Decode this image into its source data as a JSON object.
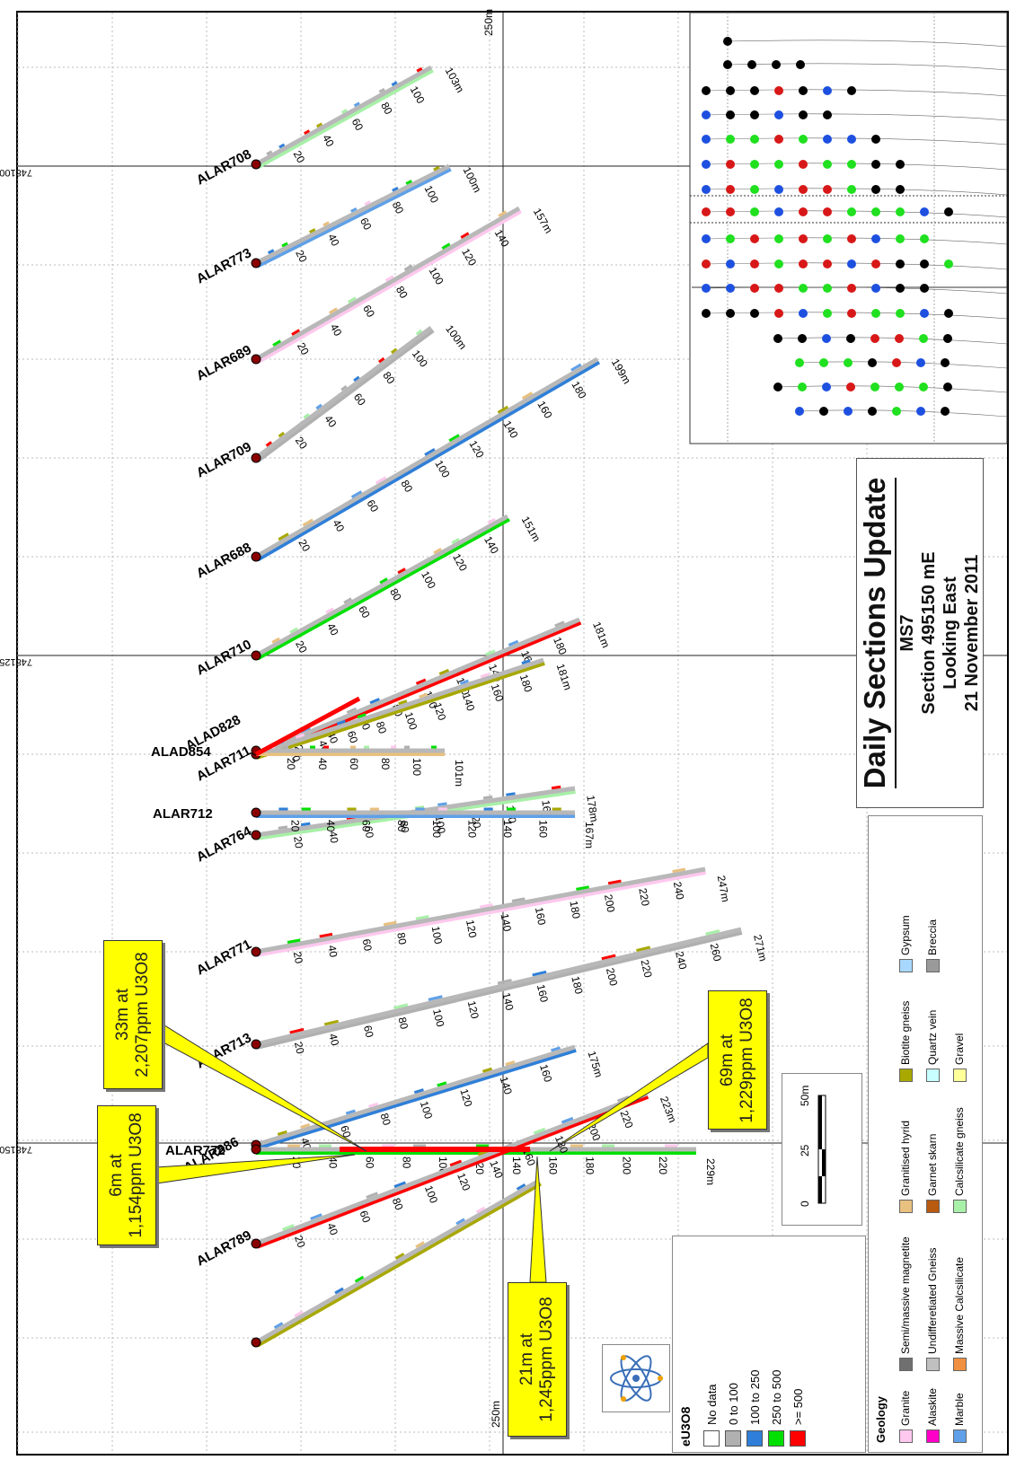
{
  "title": {
    "main": "Daily Sections Update",
    "sub1": "MS7",
    "sub2": "Section 495150 mE",
    "sub3": "Looking East",
    "sub4": "21 November 2011"
  },
  "grid": {
    "northings": [
      "7481000mN",
      "7481250mN",
      "7481500mN"
    ],
    "elevations_top": "250m",
    "elevations_bottom": "250m"
  },
  "holes": [
    {
      "name": "ALAR708",
      "end": "103m",
      "ticks": [
        "20",
        "40",
        "60",
        "80",
        "100"
      ]
    },
    {
      "name": "ALAR773",
      "end": "100m",
      "ticks": [
        "20",
        "40",
        "60",
        "80",
        "100"
      ]
    },
    {
      "name": "ALAR689",
      "end": "157m",
      "ticks": [
        "20",
        "40",
        "60",
        "80",
        "100",
        "120",
        "140"
      ]
    },
    {
      "name": "ALAR709",
      "end": "100m",
      "ticks": [
        "20",
        "40",
        "60",
        "80",
        "100"
      ]
    },
    {
      "name": "ALAR688",
      "end": "199m",
      "ticks": [
        "20",
        "40",
        "60",
        "80",
        "100",
        "120",
        "140",
        "160",
        "180"
      ]
    },
    {
      "name": "ALAR710",
      "end": "151m",
      "ticks": [
        "20",
        "40",
        "60",
        "80",
        "100",
        "120",
        "140"
      ]
    },
    {
      "name": "ALAD828",
      "end": "181m",
      "ticks": [
        "20",
        "40",
        "60",
        "80",
        "100",
        "120",
        "140",
        "160",
        "180"
      ]
    },
    {
      "name": "ALAR711",
      "end": "181m",
      "ticks": [
        "20",
        "40",
        "60",
        "80",
        "100",
        "120",
        "140",
        "160",
        "180"
      ]
    },
    {
      "name": "ALAD854",
      "end": "101m",
      "ticks": [
        "20",
        "40",
        "60",
        "80",
        "100"
      ]
    },
    {
      "name": "ALAR764",
      "end": "178m",
      "ticks": [
        "20",
        "40",
        "60",
        "80",
        "100",
        "120",
        "140",
        "160"
      ]
    },
    {
      "name": "ALAR712",
      "end": "167m",
      "ticks": [
        "20",
        "40",
        "60",
        "80",
        "100",
        "120",
        "140",
        "160"
      ]
    },
    {
      "name": "ALAR771",
      "end": "247m",
      "ticks": [
        "20",
        "40",
        "60",
        "80",
        "100",
        "120",
        "140",
        "160",
        "180",
        "200",
        "220",
        "240"
      ]
    },
    {
      "name": "ALAR713",
      "end": "271m",
      "ticks": [
        "20",
        "40",
        "60",
        "80",
        "100",
        "120",
        "140",
        "160",
        "180",
        "200",
        "220",
        "240",
        "260"
      ]
    },
    {
      "name": "ALAR886",
      "end": "175m",
      "ticks": [
        "40",
        "60",
        "80",
        "100",
        "120",
        "140",
        "160"
      ]
    },
    {
      "name": "ALAR772",
      "end": "229m",
      "ticks": [
        "20",
        "40",
        "60",
        "80",
        "100",
        "120",
        "140",
        "160",
        "180",
        "200",
        "220"
      ]
    },
    {
      "name": "ALAR789",
      "end": "223m",
      "ticks": [
        "20",
        "40",
        "60",
        "80",
        "100",
        "120",
        "140",
        "160",
        "180",
        "200",
        "220"
      ]
    }
  ],
  "callouts": [
    {
      "line1": "33m at",
      "line2": "2,207ppm U3O8"
    },
    {
      "line1": "6m at",
      "line2": "1,154ppm U3O8"
    },
    {
      "line1": "69m at",
      "line2": "1,229ppm U3O8"
    },
    {
      "line1": "21m at",
      "line2": "1,245ppm U3O8"
    }
  ],
  "eu3o8_legend": {
    "title": "eU3O8",
    "items": [
      {
        "label": "No data",
        "color": "#ffffff"
      },
      {
        "label": "0 to 100",
        "color": "#b0b0b0"
      },
      {
        "label": "100 to 250",
        "color": "#2f7fd8"
      },
      {
        "label": "250 to 500",
        "color": "#00e000"
      },
      {
        "label": ">= 500",
        "color": "#ff0000"
      }
    ]
  },
  "scale": {
    "labels": [
      "0",
      "25",
      "50m"
    ]
  },
  "geology_legend": {
    "title": "Geology",
    "items": [
      {
        "label": "Granite",
        "color": "#ffc8ee"
      },
      {
        "label": "Alaskite",
        "color": "#ff00c8"
      },
      {
        "label": "Marble",
        "color": "#5fa0e8"
      },
      {
        "label": "Semi/massive magnetite",
        "color": "#707070"
      },
      {
        "label": "Undifferetiated Gneiss",
        "color": "#c0c0c0"
      },
      {
        "label": "Massive Calcsilicate",
        "color": "#f09040"
      },
      {
        "label": "Granitised hyrid",
        "color": "#e8c080"
      },
      {
        "label": "Garnet skarn",
        "color": "#b85a10"
      },
      {
        "label": "Calcsilicate gneiss",
        "color": "#a8f0a8"
      },
      {
        "label": "Biotite gneiss",
        "color": "#a8a800"
      },
      {
        "label": "Quartz vein",
        "color": "#c8ffff"
      },
      {
        "label": "Gravel",
        "color": "#ffff9a"
      },
      {
        "label": "Gypsum",
        "color": "#a8d8ff"
      },
      {
        "label": "Breccia",
        "color": "#9a9a9a"
      }
    ]
  },
  "colors": {
    "accent": "#ffff00",
    "high": "#ff0000",
    "mid": "#00e000",
    "low": "#2f7fd8"
  }
}
